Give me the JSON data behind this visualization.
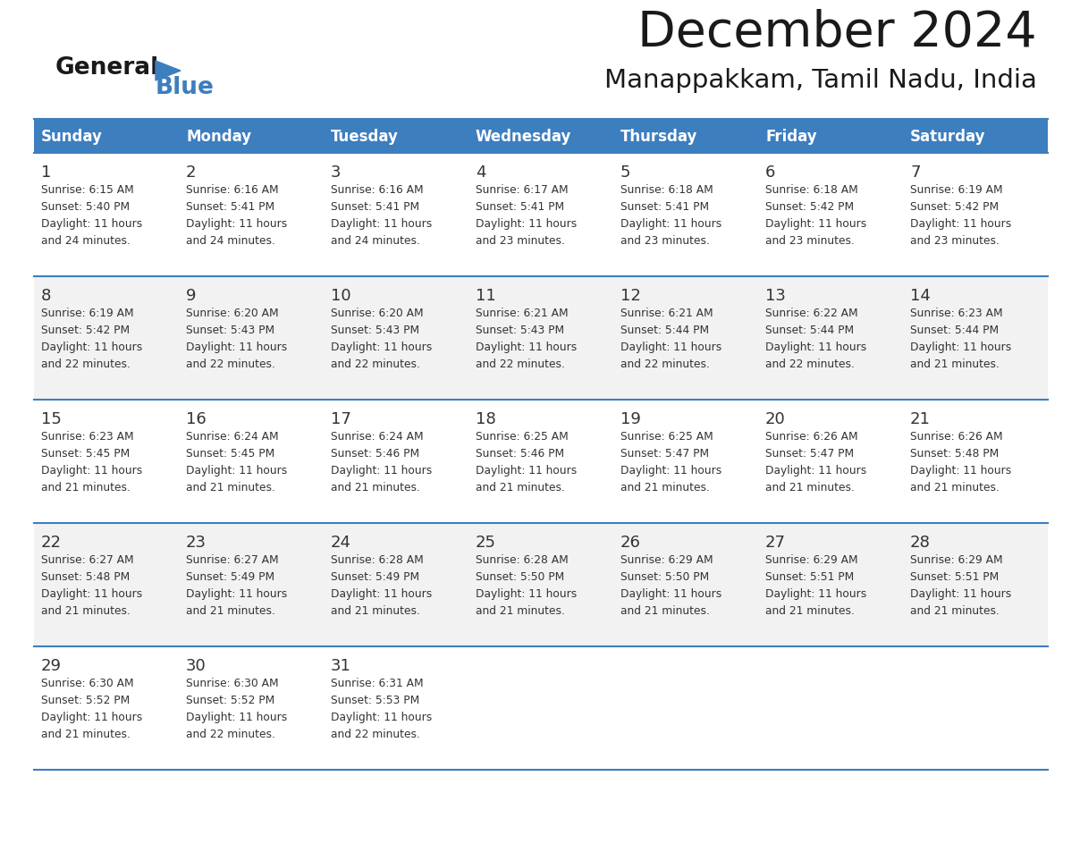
{
  "title": "December 2024",
  "subtitle": "Manappakkam, Tamil Nadu, India",
  "header_bg_color": "#3d7ebf",
  "header_text_color": "#ffffff",
  "day_names": [
    "Sunday",
    "Monday",
    "Tuesday",
    "Wednesday",
    "Thursday",
    "Friday",
    "Saturday"
  ],
  "row_bg_even": "#f2f2f2",
  "row_bg_odd": "#ffffff",
  "cell_text_color": "#333333",
  "grid_line_color": "#3d7ebf",
  "title_color": "#1a1a1a",
  "subtitle_color": "#1a1a1a",
  "logo_general_color": "#1a1a1a",
  "logo_blue_color": "#3d7ebf",
  "calendar_data": [
    [
      {
        "day": 1,
        "sunrise": "6:15 AM",
        "sunset": "5:40 PM",
        "daylight_hours": 11,
        "daylight_minutes": 24
      },
      {
        "day": 2,
        "sunrise": "6:16 AM",
        "sunset": "5:41 PM",
        "daylight_hours": 11,
        "daylight_minutes": 24
      },
      {
        "day": 3,
        "sunrise": "6:16 AM",
        "sunset": "5:41 PM",
        "daylight_hours": 11,
        "daylight_minutes": 24
      },
      {
        "day": 4,
        "sunrise": "6:17 AM",
        "sunset": "5:41 PM",
        "daylight_hours": 11,
        "daylight_minutes": 23
      },
      {
        "day": 5,
        "sunrise": "6:18 AM",
        "sunset": "5:41 PM",
        "daylight_hours": 11,
        "daylight_minutes": 23
      },
      {
        "day": 6,
        "sunrise": "6:18 AM",
        "sunset": "5:42 PM",
        "daylight_hours": 11,
        "daylight_minutes": 23
      },
      {
        "day": 7,
        "sunrise": "6:19 AM",
        "sunset": "5:42 PM",
        "daylight_hours": 11,
        "daylight_minutes": 23
      }
    ],
    [
      {
        "day": 8,
        "sunrise": "6:19 AM",
        "sunset": "5:42 PM",
        "daylight_hours": 11,
        "daylight_minutes": 22
      },
      {
        "day": 9,
        "sunrise": "6:20 AM",
        "sunset": "5:43 PM",
        "daylight_hours": 11,
        "daylight_minutes": 22
      },
      {
        "day": 10,
        "sunrise": "6:20 AM",
        "sunset": "5:43 PM",
        "daylight_hours": 11,
        "daylight_minutes": 22
      },
      {
        "day": 11,
        "sunrise": "6:21 AM",
        "sunset": "5:43 PM",
        "daylight_hours": 11,
        "daylight_minutes": 22
      },
      {
        "day": 12,
        "sunrise": "6:21 AM",
        "sunset": "5:44 PM",
        "daylight_hours": 11,
        "daylight_minutes": 22
      },
      {
        "day": 13,
        "sunrise": "6:22 AM",
        "sunset": "5:44 PM",
        "daylight_hours": 11,
        "daylight_minutes": 22
      },
      {
        "day": 14,
        "sunrise": "6:23 AM",
        "sunset": "5:44 PM",
        "daylight_hours": 11,
        "daylight_minutes": 21
      }
    ],
    [
      {
        "day": 15,
        "sunrise": "6:23 AM",
        "sunset": "5:45 PM",
        "daylight_hours": 11,
        "daylight_minutes": 21
      },
      {
        "day": 16,
        "sunrise": "6:24 AM",
        "sunset": "5:45 PM",
        "daylight_hours": 11,
        "daylight_minutes": 21
      },
      {
        "day": 17,
        "sunrise": "6:24 AM",
        "sunset": "5:46 PM",
        "daylight_hours": 11,
        "daylight_minutes": 21
      },
      {
        "day": 18,
        "sunrise": "6:25 AM",
        "sunset": "5:46 PM",
        "daylight_hours": 11,
        "daylight_minutes": 21
      },
      {
        "day": 19,
        "sunrise": "6:25 AM",
        "sunset": "5:47 PM",
        "daylight_hours": 11,
        "daylight_minutes": 21
      },
      {
        "day": 20,
        "sunrise": "6:26 AM",
        "sunset": "5:47 PM",
        "daylight_hours": 11,
        "daylight_minutes": 21
      },
      {
        "day": 21,
        "sunrise": "6:26 AM",
        "sunset": "5:48 PM",
        "daylight_hours": 11,
        "daylight_minutes": 21
      }
    ],
    [
      {
        "day": 22,
        "sunrise": "6:27 AM",
        "sunset": "5:48 PM",
        "daylight_hours": 11,
        "daylight_minutes": 21
      },
      {
        "day": 23,
        "sunrise": "6:27 AM",
        "sunset": "5:49 PM",
        "daylight_hours": 11,
        "daylight_minutes": 21
      },
      {
        "day": 24,
        "sunrise": "6:28 AM",
        "sunset": "5:49 PM",
        "daylight_hours": 11,
        "daylight_minutes": 21
      },
      {
        "day": 25,
        "sunrise": "6:28 AM",
        "sunset": "5:50 PM",
        "daylight_hours": 11,
        "daylight_minutes": 21
      },
      {
        "day": 26,
        "sunrise": "6:29 AM",
        "sunset": "5:50 PM",
        "daylight_hours": 11,
        "daylight_minutes": 21
      },
      {
        "day": 27,
        "sunrise": "6:29 AM",
        "sunset": "5:51 PM",
        "daylight_hours": 11,
        "daylight_minutes": 21
      },
      {
        "day": 28,
        "sunrise": "6:29 AM",
        "sunset": "5:51 PM",
        "daylight_hours": 11,
        "daylight_minutes": 21
      }
    ],
    [
      {
        "day": 29,
        "sunrise": "6:30 AM",
        "sunset": "5:52 PM",
        "daylight_hours": 11,
        "daylight_minutes": 21
      },
      {
        "day": 30,
        "sunrise": "6:30 AM",
        "sunset": "5:52 PM",
        "daylight_hours": 11,
        "daylight_minutes": 22
      },
      {
        "day": 31,
        "sunrise": "6:31 AM",
        "sunset": "5:53 PM",
        "daylight_hours": 11,
        "daylight_minutes": 22
      },
      null,
      null,
      null,
      null
    ]
  ]
}
